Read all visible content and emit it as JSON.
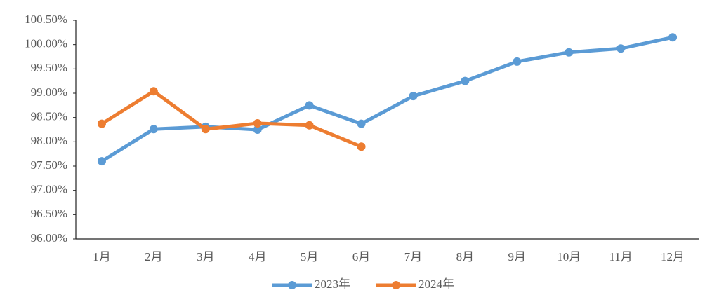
{
  "chart_data": {
    "type": "line",
    "categories": [
      "1月",
      "2月",
      "3月",
      "4月",
      "5月",
      "6月",
      "7月",
      "8月",
      "9月",
      "10月",
      "11月",
      "12月"
    ],
    "series": [
      {
        "name": "2023年",
        "color": "#5b9bd5",
        "values": [
          97.6,
          98.26,
          98.31,
          98.25,
          98.75,
          98.37,
          98.94,
          99.25,
          99.65,
          99.84,
          99.92,
          100.15
        ]
      },
      {
        "name": "2024年",
        "color": "#ed7d31",
        "values": [
          98.37,
          99.04,
          98.26,
          98.38,
          98.34,
          97.9,
          null,
          null,
          null,
          null,
          null,
          null
        ]
      }
    ],
    "ylim": [
      96,
      100.5
    ],
    "yticks": [
      {
        "value": 96,
        "label": "96.00%"
      },
      {
        "value": 96.5,
        "label": "96.50%"
      },
      {
        "value": 97,
        "label": "97.00%"
      },
      {
        "value": 97.5,
        "label": "97.50%"
      },
      {
        "value": 98,
        "label": "98.00%"
      },
      {
        "value": 98.5,
        "label": "98.50%"
      },
      {
        "value": 99,
        "label": "99.00%"
      },
      {
        "value": 99.5,
        "label": "99.50%"
      },
      {
        "value": 100,
        "label": "100.00%"
      },
      {
        "value": 100.5,
        "label": "100.50%"
      }
    ],
    "legend": "bottom"
  }
}
